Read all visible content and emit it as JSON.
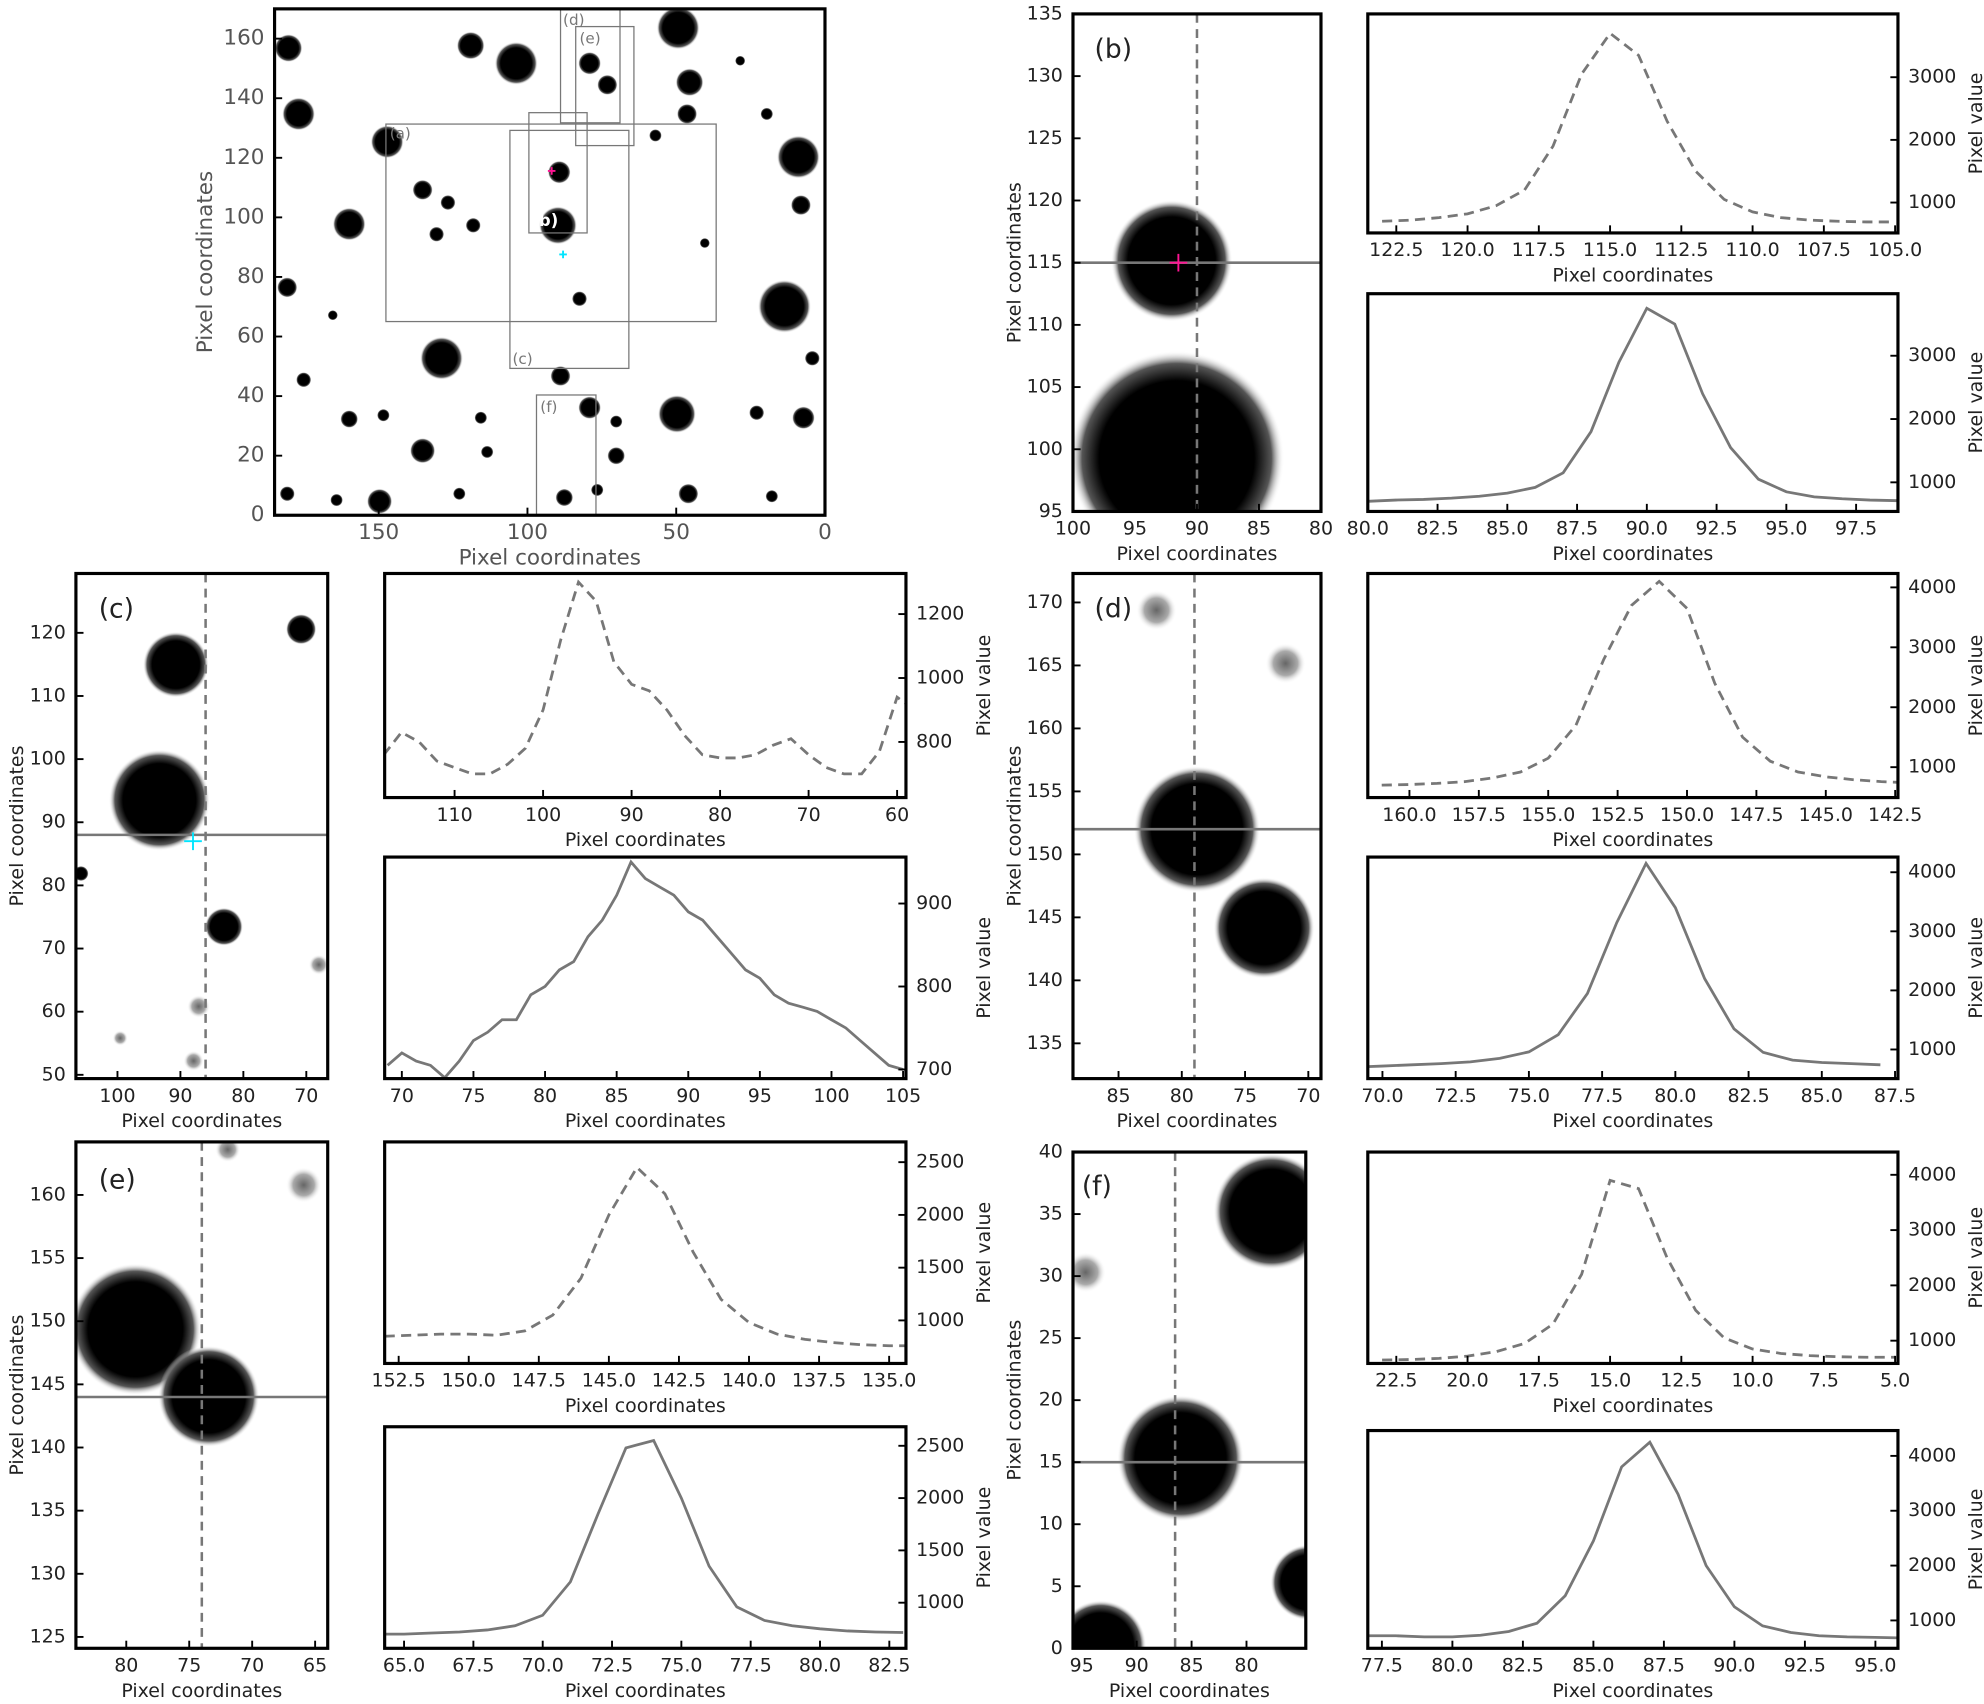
{
  "chart_data": [
    {
      "type": "image",
      "xlim": [
        185,
        0
      ],
      "ylim": [
        0,
        170
      ],
      "xticks": [
        150,
        100,
        50,
        0
      ],
      "yticks": [
        0,
        20,
        40,
        60,
        80,
        100,
        120,
        140,
        160
      ],
      "x_label": "Pixel coordinates",
      "y_label": "Pixel coordinates",
      "annotations": [
        "(a)",
        "(b)",
        "(c)",
        "(d)",
        "(e)",
        "(f)"
      ]
    },
    {
      "type": "image",
      "label": "(b)",
      "xlim": [
        100,
        80
      ],
      "ylim": [
        95,
        135
      ],
      "xticks": [
        100,
        95,
        90,
        85,
        80
      ],
      "yticks": [
        95,
        100,
        105,
        110,
        115,
        120,
        125,
        130,
        135
      ],
      "x_label": "Pixel coordinates",
      "y_label": "Pixel coordinates",
      "crosshair_x": 90,
      "crosshair_y": 115,
      "marker": {
        "x": 91.5,
        "y": 115,
        "color": "#ff1493"
      }
    },
    {
      "type": "line",
      "linestyle": "dashed",
      "color": "#777777",
      "xlim": [
        123.5,
        104.9
      ],
      "ylim": [
        515,
        4010
      ],
      "xticks": [
        122.5,
        {
          "value": 120,
          "label": "120.0"
        },
        117.5,
        {
          "value": 115,
          "label": "115.0"
        },
        112.5,
        {
          "value": 110,
          "label": "110.0"
        },
        107.5,
        {
          "value": 105,
          "label": "105.0"
        }
      ],
      "yticks": [
        1000,
        2000,
        3000
      ],
      "x_label": "Pixel coordinates",
      "y_label": "Pixel value",
      "x": [
        123,
        122,
        121,
        120,
        119,
        118,
        117,
        116,
        115,
        114,
        113,
        112,
        111,
        110,
        109,
        108,
        107,
        106,
        105
      ],
      "values": [
        700,
        720,
        760,
        820,
        950,
        1200,
        1900,
        3050,
        3700,
        3350,
        2300,
        1500,
        1050,
        850,
        760,
        720,
        700,
        690,
        690
      ]
    },
    {
      "type": "line",
      "linestyle": "solid",
      "color": "#777777",
      "xlim": [
        80,
        99
      ],
      "ylim": [
        540,
        3980
      ],
      "xticks": [
        {
          "value": 80,
          "label": "80.0"
        },
        82.5,
        {
          "value": 85,
          "label": "85.0"
        },
        87.5,
        {
          "value": 90,
          "label": "90.0"
        },
        92.5,
        {
          "value": 95,
          "label": "95.0"
        },
        97.5
      ],
      "yticks": [
        1000,
        2000,
        3000
      ],
      "x_label": "Pixel coordinates",
      "y_label": "Pixel value",
      "x": [
        80,
        81,
        82,
        83,
        84,
        85,
        86,
        87,
        88,
        89,
        90,
        91,
        92,
        93,
        94,
        95,
        96,
        97,
        98,
        99
      ],
      "values": [
        700,
        720,
        730,
        750,
        780,
        830,
        920,
        1150,
        1800,
        2900,
        3750,
        3500,
        2400,
        1550,
        1050,
        850,
        770,
        740,
        720,
        710
      ]
    },
    {
      "type": "image",
      "label": "(c)",
      "xlim": [
        106.6,
        66.6
      ],
      "ylim": [
        49.4,
        129.4
      ],
      "xticks": [
        100,
        90,
        80,
        70
      ],
      "yticks": [
        50,
        60,
        70,
        80,
        90,
        100,
        110,
        120
      ],
      "x_label": "Pixel coordinates",
      "y_label": "Pixel coordinates",
      "crosshair_x": 86,
      "crosshair_y": 88,
      "marker": {
        "x": 88,
        "y": 87,
        "color": "#00e5ff"
      }
    },
    {
      "type": "line",
      "linestyle": "dashed",
      "color": "#777777",
      "xlim": [
        117.9,
        59
      ],
      "ylim": [
        626,
        1327
      ],
      "xticks": [
        110,
        100,
        90,
        80,
        70,
        60
      ],
      "yticks": [
        800,
        1000,
        1200
      ],
      "x_label": "Pixel coordinates",
      "y_label": "Pixel value",
      "x": [
        118,
        116,
        114,
        112,
        110,
        108,
        106,
        104,
        102,
        100,
        98,
        96,
        94,
        92,
        90,
        88,
        86,
        84,
        82,
        80,
        78,
        76,
        74,
        72,
        70,
        68,
        66,
        64,
        62,
        60,
        59
      ],
      "values": [
        760,
        830,
        800,
        740,
        720,
        700,
        700,
        730,
        780,
        900,
        1120,
        1300,
        1240,
        1050,
        980,
        960,
        900,
        820,
        760,
        750,
        750,
        760,
        790,
        810,
        760,
        720,
        700,
        700,
        770,
        940,
        920
      ]
    },
    {
      "type": "line",
      "linestyle": "solid",
      "color": "#777777",
      "xlim": [
        68.8,
        105.2
      ],
      "ylim": [
        689,
        956
      ],
      "xticks": [
        70,
        75,
        80,
        85,
        90,
        95,
        100,
        105
      ],
      "yticks": [
        700,
        800,
        900
      ],
      "x_label": "Pixel coordinates",
      "y_label": "Pixel value",
      "x": [
        69,
        70,
        71,
        72,
        73,
        74,
        75,
        76,
        77,
        78,
        79,
        80,
        81,
        82,
        83,
        84,
        85,
        86,
        87,
        88,
        89,
        90,
        91,
        92,
        93,
        94,
        95,
        96,
        97,
        98,
        99,
        100,
        101,
        102,
        103,
        104,
        105
      ],
      "values": [
        705,
        720,
        710,
        705,
        690,
        710,
        735,
        745,
        760,
        760,
        790,
        800,
        820,
        830,
        860,
        880,
        910,
        950,
        930,
        920,
        910,
        890,
        880,
        860,
        840,
        820,
        810,
        790,
        780,
        775,
        770,
        760,
        750,
        735,
        720,
        705,
        700
      ]
    },
    {
      "type": "image",
      "label": "(d)",
      "xlim": [
        88.6,
        69
      ],
      "ylim": [
        132.2,
        172.3
      ],
      "xticks": [
        85,
        80,
        75,
        70
      ],
      "yticks": [
        135,
        140,
        145,
        150,
        155,
        160,
        165,
        170
      ],
      "x_label": "Pixel coordinates",
      "y_label": "Pixel coordinates",
      "crosshair_x": 79,
      "crosshair_y": 152
    },
    {
      "type": "line",
      "linestyle": "dashed",
      "color": "#777777",
      "xlim": [
        161.5,
        142.4
      ],
      "ylim": [
        493,
        4232
      ],
      "xticks": [
        {
          "value": 160,
          "label": "160.0"
        },
        157.5,
        {
          "value": 155,
          "label": "155.0"
        },
        152.5,
        {
          "value": 150,
          "label": "150.0"
        },
        147.5,
        {
          "value": 145,
          "label": "145.0"
        },
        142.5
      ],
      "yticks": [
        1000,
        2000,
        3000,
        4000
      ],
      "x_label": "Pixel coordinates",
      "y_label": "Pixel value",
      "x": [
        161,
        160,
        159,
        158,
        157,
        156,
        155,
        154,
        153,
        152,
        151,
        150,
        149,
        148,
        147,
        146,
        145,
        144,
        143,
        142
      ],
      "values": [
        700,
        710,
        730,
        760,
        820,
        920,
        1150,
        1700,
        2800,
        3700,
        4100,
        3650,
        2400,
        1500,
        1100,
        920,
        840,
        790,
        760,
        740
      ]
    },
    {
      "type": "line",
      "linestyle": "solid",
      "color": "#777777",
      "xlim": [
        69.5,
        87.6
      ],
      "ylim": [
        507,
        4257
      ],
      "xticks": [
        {
          "value": 70,
          "label": "70.0"
        },
        72.5,
        {
          "value": 75,
          "label": "75.0"
        },
        77.5,
        {
          "value": 80,
          "label": "80.0"
        },
        82.5,
        {
          "value": 85,
          "label": "85.0"
        },
        87.5
      ],
      "yticks": [
        1000,
        2000,
        3000,
        4000
      ],
      "x_label": "Pixel coordinates",
      "y_label": "Pixel value",
      "x": [
        69,
        70,
        71,
        72,
        73,
        74,
        75,
        76,
        77,
        78,
        79,
        80,
        81,
        82,
        83,
        84,
        85,
        86,
        87
      ],
      "values": [
        700,
        720,
        740,
        760,
        790,
        850,
        960,
        1250,
        1950,
        3150,
        4150,
        3400,
        2200,
        1350,
        950,
        820,
        780,
        760,
        740
      ]
    },
    {
      "type": "image",
      "label": "(e)",
      "xlim": [
        84,
        64
      ],
      "ylim": [
        124.1,
        164.2
      ],
      "xticks": [
        80,
        75,
        70,
        65
      ],
      "yticks": [
        125,
        130,
        135,
        140,
        145,
        150,
        155,
        160
      ],
      "x_label": "Pixel coordinates",
      "y_label": "Pixel coordinates",
      "crosshair_x": 74,
      "crosshair_y": 144
    },
    {
      "type": "line",
      "linestyle": "dashed",
      "color": "#777777",
      "xlim": [
        153,
        134.4
      ],
      "ylim": [
        592,
        2692
      ],
      "xticks": [
        152.5,
        {
          "value": 150,
          "label": "150.0"
        },
        147.5,
        {
          "value": 145,
          "label": "145.0"
        },
        142.5,
        {
          "value": 140,
          "label": "140.0"
        },
        137.5,
        {
          "value": 135,
          "label": "135.0"
        }
      ],
      "yticks": [
        1000,
        1500,
        2000,
        2500
      ],
      "x_label": "Pixel coordinates",
      "y_label": "Pixel value",
      "x": [
        153,
        152,
        151,
        150,
        149,
        148,
        147,
        146,
        145,
        144,
        143,
        142,
        141,
        140,
        139,
        138,
        137,
        136,
        135,
        134
      ],
      "values": [
        850,
        860,
        870,
        870,
        860,
        900,
        1050,
        1400,
        2000,
        2450,
        2200,
        1650,
        1200,
        980,
        870,
        820,
        790,
        770,
        760,
        760
      ]
    },
    {
      "type": "line",
      "linestyle": "solid",
      "color": "#777777",
      "xlim": [
        64.3,
        83.1
      ],
      "ylim": [
        564,
        2682
      ],
      "xticks": [
        {
          "value": 65,
          "label": "65.0"
        },
        67.5,
        {
          "value": 70,
          "label": "70.0"
        },
        72.5,
        {
          "value": 75,
          "label": "75.0"
        },
        77.5,
        {
          "value": 80,
          "label": "80.0"
        },
        82.5
      ],
      "yticks": [
        1000,
        1500,
        2000,
        2500
      ],
      "x_label": "Pixel coordinates",
      "y_label": "Pixel value",
      "x": [
        64,
        65,
        66,
        67,
        68,
        69,
        70,
        71,
        72,
        73,
        74,
        75,
        76,
        77,
        78,
        79,
        80,
        81,
        82,
        83
      ],
      "values": [
        700,
        700,
        710,
        720,
        740,
        780,
        880,
        1200,
        1850,
        2480,
        2550,
        2000,
        1350,
        960,
        830,
        780,
        750,
        730,
        720,
        715
      ]
    },
    {
      "type": "image",
      "label": "(f)",
      "xlim": [
        95.8,
        74.6
      ],
      "ylim": [
        0,
        40
      ],
      "xticks": [
        95,
        90,
        85,
        80
      ],
      "yticks": [
        0,
        5,
        10,
        15,
        20,
        25,
        30,
        35,
        40
      ],
      "x_label": "Pixel coordinates",
      "y_label": "Pixel coordinates",
      "crosshair_x": 86.5,
      "crosshair_y": 15
    },
    {
      "type": "line",
      "linestyle": "dashed",
      "color": "#777777",
      "xlim": [
        23.5,
        4.9
      ],
      "ylim": [
        588,
        4412
      ],
      "xticks": [
        22.5,
        {
          "value": 20,
          "label": "20.0"
        },
        17.5,
        {
          "value": 15,
          "label": "15.0"
        },
        12.5,
        {
          "value": 10,
          "label": "10.0"
        },
        7.5,
        {
          "value": 5,
          "label": "5.0"
        }
      ],
      "yticks": [
        1000,
        2000,
        3000,
        4000
      ],
      "x_label": "Pixel coordinates",
      "y_label": "Pixel value",
      "x": [
        23,
        22,
        21,
        20,
        19,
        18,
        17,
        16,
        15,
        14,
        13,
        12,
        11,
        10,
        9,
        8,
        7,
        6,
        5
      ],
      "values": [
        650,
        660,
        680,
        720,
        800,
        950,
        1300,
        2200,
        3900,
        3750,
        2500,
        1550,
        1050,
        850,
        770,
        730,
        710,
        700,
        700
      ]
    },
    {
      "type": "line",
      "linestyle": "solid",
      "color": "#777777",
      "xlim": [
        77,
        95.8
      ],
      "ylim": [
        492,
        4462
      ],
      "xticks": [
        77.5,
        {
          "value": 80,
          "label": "80.0"
        },
        82.5,
        {
          "value": 85,
          "label": "85.0"
        },
        87.5,
        {
          "value": 90,
          "label": "90.0"
        },
        92.5,
        {
          "value": 95,
          "label": "95.0"
        }
      ],
      "yticks": [
        1000,
        2000,
        3000,
        4000
      ],
      "x_label": "Pixel coordinates",
      "y_label": "Pixel value",
      "x": [
        77,
        78,
        79,
        80,
        81,
        82,
        83,
        84,
        85,
        86,
        87,
        88,
        89,
        90,
        91,
        92,
        93,
        94,
        95,
        96
      ],
      "values": [
        720,
        720,
        700,
        700,
        730,
        800,
        950,
        1450,
        2450,
        3800,
        4250,
        3300,
        2000,
        1250,
        900,
        780,
        720,
        700,
        690,
        680
      ]
    }
  ]
}
